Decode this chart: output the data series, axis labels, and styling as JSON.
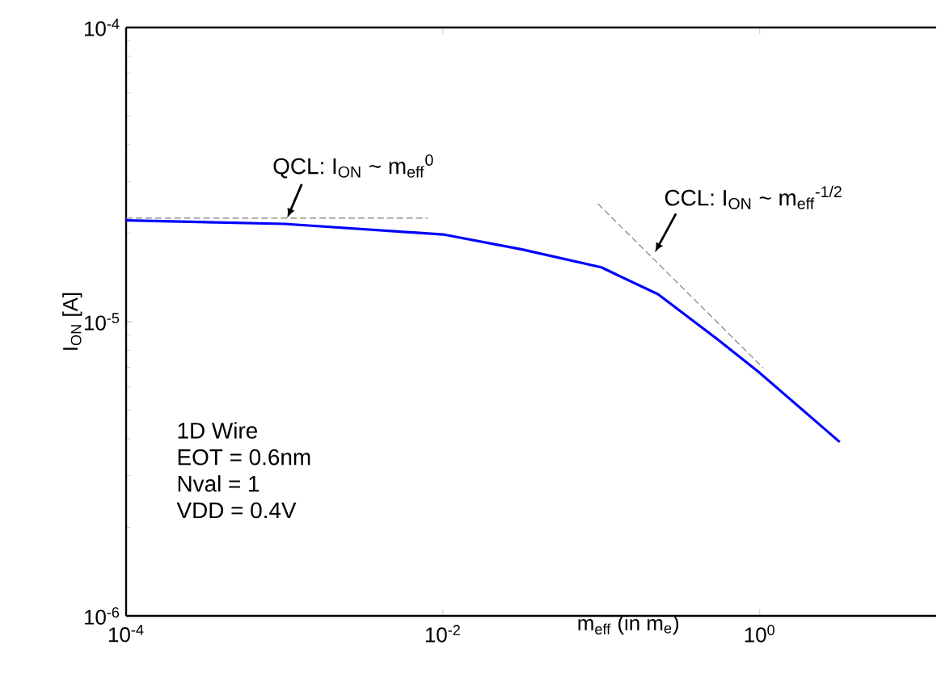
{
  "chart_data": {
    "type": "line",
    "xlabel": "m$_{eff}$  (in m$_{e}$)",
    "ylabel": "I$_{ON}$ [A]",
    "log": "xy",
    "xlim": [
      0.0001,
      13
    ],
    "ylim": [
      1e-06,
      0.0001
    ],
    "xticks": [
      {
        "value": 0.0001,
        "label": "10$^{-4}$"
      },
      {
        "value": 0.01,
        "label": "10$^{-2}$"
      },
      {
        "value": 1,
        "label": "10$^{0}$"
      }
    ],
    "yticks": [
      {
        "value": 1e-06,
        "label": "10$^{-6}$"
      },
      {
        "value": 1e-05,
        "label": "10$^{-5}$"
      },
      {
        "value": 0.0001,
        "label": "10$^{-4}$"
      }
    ],
    "series": [
      {
        "color": "#0000ff",
        "line_style": "solid",
        "x": [
          0.0001,
          0.001,
          0.01,
          0.0316,
          0.1,
          0.228,
          0.543,
          1,
          3.2
        ],
        "values": [
          2.21e-05,
          2.15e-05,
          1.98e-05,
          1.76e-05,
          1.53e-05,
          1.24e-05,
          8.7e-06,
          6.7e-06,
          3.9e-06
        ]
      },
      {
        "color": "#808080",
        "line_style": "dashed",
        "x": [
          0.0001,
          0.008
        ],
        "values": [
          2.25e-05,
          2.25e-05
        ]
      },
      {
        "color": "#808080",
        "line_style": "dashed",
        "x": [
          0.095,
          1.05
        ],
        "values": [
          2.52e-05,
          6.97e-06
        ]
      }
    ],
    "annotations": [
      {
        "text": "QCL: I$_{ON}$ ~ m$_{eff}$$^{0}$",
        "x": 0.00104,
        "y": 2.25e-05
      },
      {
        "text": "CCL: I$_{ON}$ ~ m$_{eff}$$^{-1/2}$",
        "x": 0.218,
        "y": 1.72e-05
      },
      "1D Wire",
      "EOT = 0.6nm",
      "Nval = 1",
      "VDD = 0.4V"
    ]
  }
}
